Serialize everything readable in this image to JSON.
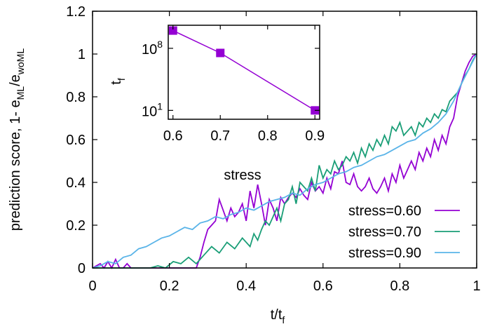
{
  "chart_data": [
    {
      "type": "line",
      "xlabel": "t/t",
      "xlabel_sub": "f",
      "ylabel_main": "prediction score, 1- e",
      "ylabel_sub1": "ML",
      "ylabel_sep": "/e",
      "ylabel_sub2": "woML",
      "xlim": [
        0,
        1
      ],
      "ylim": [
        0,
        1.2
      ],
      "xticks": [
        0,
        0.2,
        0.4,
        0.6,
        0.8,
        1
      ],
      "xtick_labels": [
        "0",
        "0.2",
        "0.4",
        "0.6",
        "0.8",
        "1"
      ],
      "yticks": [
        0,
        0.2,
        0.4,
        0.6,
        0.8,
        1,
        1.2
      ],
      "ytick_labels": [
        "0",
        "0.2",
        "0.4",
        "0.6",
        "0.8",
        "1",
        "1.2"
      ],
      "grid": false,
      "legend_position": "bottom-right",
      "series": [
        {
          "name": "stress=0.60",
          "color": "#9400d3",
          "x": [
            0.0,
            0.01,
            0.02,
            0.03,
            0.04,
            0.05,
            0.06,
            0.07,
            0.08,
            0.09,
            0.1,
            0.12,
            0.14,
            0.16,
            0.18,
            0.2,
            0.22,
            0.24,
            0.26,
            0.27,
            0.28,
            0.29,
            0.3,
            0.31,
            0.32,
            0.33,
            0.34,
            0.35,
            0.36,
            0.37,
            0.38,
            0.39,
            0.4,
            0.41,
            0.42,
            0.43,
            0.44,
            0.45,
            0.46,
            0.47,
            0.48,
            0.49,
            0.5,
            0.51,
            0.52,
            0.53,
            0.54,
            0.55,
            0.56,
            0.57,
            0.58,
            0.59,
            0.6,
            0.61,
            0.62,
            0.63,
            0.64,
            0.65,
            0.66,
            0.67,
            0.68,
            0.69,
            0.7,
            0.71,
            0.72,
            0.73,
            0.74,
            0.75,
            0.76,
            0.77,
            0.78,
            0.79,
            0.8,
            0.81,
            0.82,
            0.83,
            0.84,
            0.85,
            0.86,
            0.87,
            0.88,
            0.89,
            0.9,
            0.91,
            0.92,
            0.93,
            0.94,
            0.95,
            0.96,
            0.97,
            0.98,
            0.99,
            1.0
          ],
          "values": [
            0.0,
            0.01,
            0.02,
            0.0,
            0.03,
            0.0,
            0.04,
            0.0,
            0.0,
            0.02,
            0.0,
            0.0,
            0.0,
            0.0,
            0.0,
            0.0,
            0.0,
            0.0,
            0.0,
            0.0,
            0.05,
            0.12,
            0.18,
            0.2,
            0.22,
            0.32,
            0.27,
            0.22,
            0.28,
            0.24,
            0.26,
            0.3,
            0.22,
            0.36,
            0.28,
            0.39,
            0.3,
            0.2,
            0.32,
            0.28,
            0.22,
            0.33,
            0.3,
            0.33,
            0.35,
            0.33,
            0.37,
            0.34,
            0.32,
            0.4,
            0.36,
            0.38,
            0.35,
            0.42,
            0.37,
            0.45,
            0.44,
            0.5,
            0.4,
            0.39,
            0.44,
            0.38,
            0.36,
            0.38,
            0.42,
            0.37,
            0.35,
            0.38,
            0.42,
            0.36,
            0.44,
            0.4,
            0.48,
            0.42,
            0.46,
            0.5,
            0.46,
            0.54,
            0.5,
            0.56,
            0.52,
            0.6,
            0.55,
            0.62,
            0.58,
            0.66,
            0.7,
            0.8,
            0.86,
            0.92,
            0.96,
            0.99,
            1.0
          ]
        },
        {
          "name": "stress=0.70",
          "color": "#1a9e77",
          "x": [
            0.0,
            0.05,
            0.1,
            0.13,
            0.15,
            0.17,
            0.19,
            0.21,
            0.23,
            0.25,
            0.27,
            0.29,
            0.31,
            0.33,
            0.35,
            0.37,
            0.39,
            0.41,
            0.42,
            0.43,
            0.44,
            0.45,
            0.46,
            0.47,
            0.48,
            0.49,
            0.5,
            0.51,
            0.52,
            0.53,
            0.54,
            0.55,
            0.56,
            0.57,
            0.58,
            0.59,
            0.6,
            0.61,
            0.62,
            0.63,
            0.64,
            0.65,
            0.66,
            0.67,
            0.68,
            0.69,
            0.7,
            0.71,
            0.72,
            0.73,
            0.74,
            0.75,
            0.76,
            0.77,
            0.78,
            0.79,
            0.8,
            0.81,
            0.82,
            0.83,
            0.84,
            0.85,
            0.86,
            0.87,
            0.88,
            0.89,
            0.9,
            0.91,
            0.92,
            0.93,
            0.94,
            0.95,
            0.96,
            0.97,
            0.98,
            0.99,
            1.0
          ],
          "values": [
            0.0,
            0.0,
            0.0,
            0.0,
            0.0,
            0.01,
            0.0,
            0.03,
            0.02,
            0.05,
            0.02,
            0.06,
            0.1,
            0.07,
            0.12,
            0.09,
            0.14,
            0.1,
            0.16,
            0.13,
            0.18,
            0.22,
            0.2,
            0.24,
            0.28,
            0.22,
            0.3,
            0.32,
            0.38,
            0.3,
            0.4,
            0.38,
            0.36,
            0.42,
            0.36,
            0.48,
            0.42,
            0.46,
            0.44,
            0.5,
            0.46,
            0.48,
            0.52,
            0.5,
            0.54,
            0.49,
            0.56,
            0.52,
            0.58,
            0.55,
            0.6,
            0.57,
            0.62,
            0.58,
            0.66,
            0.64,
            0.68,
            0.62,
            0.64,
            0.66,
            0.62,
            0.68,
            0.66,
            0.7,
            0.68,
            0.72,
            0.7,
            0.74,
            0.73,
            0.78,
            0.8,
            0.82,
            0.86,
            0.9,
            0.93,
            0.97,
            1.0
          ]
        },
        {
          "name": "stress=0.90",
          "color": "#5ab4e8",
          "x": [
            0.0,
            0.02,
            0.04,
            0.06,
            0.08,
            0.1,
            0.12,
            0.14,
            0.16,
            0.18,
            0.2,
            0.22,
            0.24,
            0.26,
            0.28,
            0.3,
            0.32,
            0.34,
            0.36,
            0.38,
            0.4,
            0.42,
            0.44,
            0.46,
            0.48,
            0.5,
            0.52,
            0.54,
            0.56,
            0.58,
            0.6,
            0.62,
            0.64,
            0.66,
            0.68,
            0.7,
            0.72,
            0.74,
            0.76,
            0.78,
            0.8,
            0.82,
            0.84,
            0.86,
            0.88,
            0.9,
            0.92,
            0.94,
            0.96,
            0.98,
            1.0
          ],
          "values": [
            0.0,
            0.01,
            0.03,
            0.02,
            0.05,
            0.06,
            0.09,
            0.1,
            0.12,
            0.14,
            0.15,
            0.17,
            0.19,
            0.18,
            0.21,
            0.22,
            0.24,
            0.23,
            0.25,
            0.26,
            0.28,
            0.27,
            0.29,
            0.31,
            0.32,
            0.33,
            0.35,
            0.34,
            0.37,
            0.39,
            0.4,
            0.42,
            0.44,
            0.45,
            0.47,
            0.48,
            0.5,
            0.52,
            0.53,
            0.55,
            0.57,
            0.59,
            0.6,
            0.63,
            0.65,
            0.68,
            0.72,
            0.78,
            0.86,
            0.93,
            1.0
          ]
        }
      ]
    },
    {
      "type": "line",
      "xlabel": "stress",
      "ylabel": "t",
      "ylabel_sub": "f",
      "y_scale": "log",
      "xlim": [
        0.59,
        0.91
      ],
      "ylim_log10": [
        0,
        10.6
      ],
      "xticks": [
        0.6,
        0.7,
        0.8,
        0.9
      ],
      "xtick_labels": [
        "0.6",
        "0.7",
        "0.8",
        "0.9"
      ],
      "yticks_log10": [
        1,
        8
      ],
      "ytick_base": "10",
      "ytick_exponents": [
        "1",
        "8"
      ],
      "grid": false,
      "series": [
        {
          "color": "#9400d3",
          "x": [
            0.6,
            0.7,
            0.9
          ],
          "values": [
            10000000000.0,
            30000000.0,
            10
          ]
        }
      ]
    }
  ]
}
